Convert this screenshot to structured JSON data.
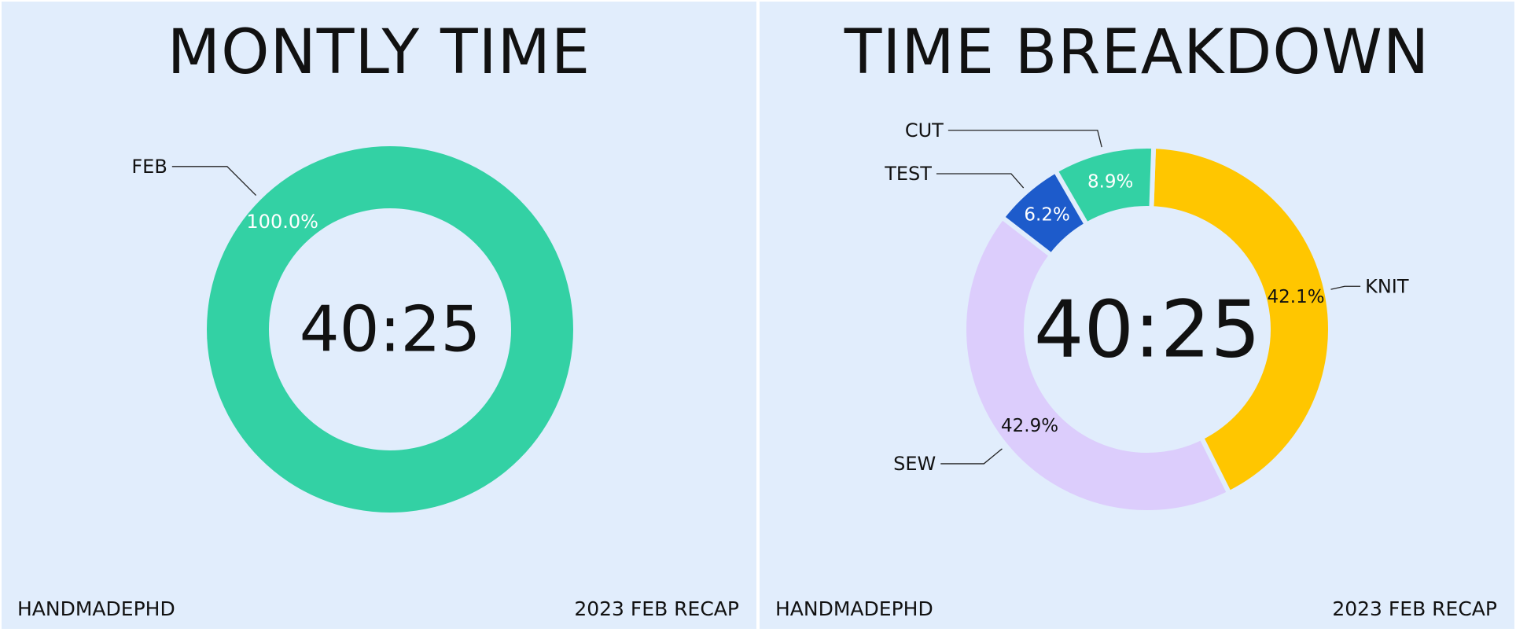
{
  "panels": [
    {
      "title": "MONTLY TIME",
      "footer_left": "HANDMADEPHD",
      "footer_right": "2023 FEB RECAP"
    },
    {
      "title": "TIME BREAKDOWN",
      "footer_left": "HANDMADEPHD",
      "footer_right": "2023 FEB RECAP"
    }
  ],
  "chart_data": [
    {
      "type": "pie",
      "donut": true,
      "title": "MONTLY TIME",
      "center_text": "40:25",
      "slices": [
        {
          "label": "FEB",
          "percent": 100.0,
          "percent_label": "100.0%",
          "color": "#33d1a4"
        }
      ]
    },
    {
      "type": "pie",
      "donut": true,
      "title": "TIME BREAKDOWN",
      "center_text": "40:25",
      "slices": [
        {
          "label": "KNIT",
          "percent": 42.1,
          "percent_label": "42.1%",
          "color": "#ffc600"
        },
        {
          "label": "SEW",
          "percent": 42.9,
          "percent_label": "42.9%",
          "color": "#dccdfc"
        },
        {
          "label": "TEST",
          "percent": 6.2,
          "percent_label": "6.2%",
          "color": "#1d5bcb"
        },
        {
          "label": "CUT",
          "percent": 8.9,
          "percent_label": "8.9%",
          "color": "#33d1a4"
        }
      ]
    }
  ]
}
